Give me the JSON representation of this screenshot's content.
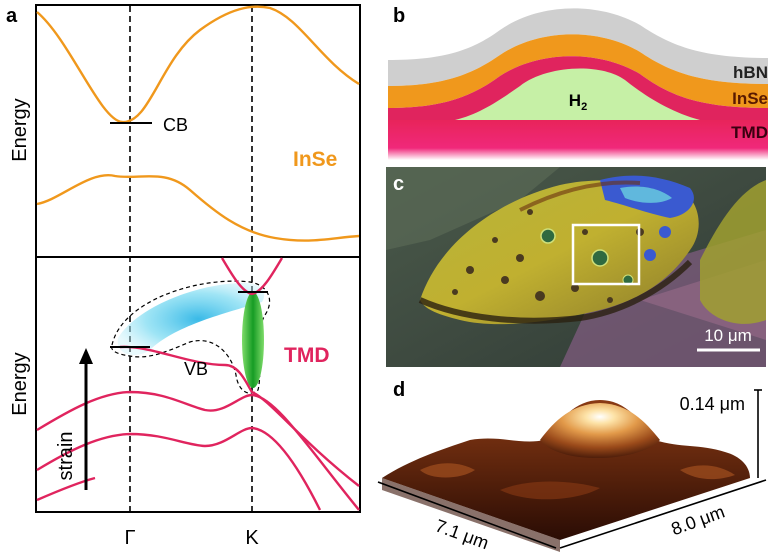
{
  "panels": {
    "a": {
      "letter": "a",
      "top": {
        "ylabel": "Energy",
        "material": "InSe",
        "band_label": "CB"
      },
      "bottom": {
        "ylabel": "Energy",
        "material": "TMD",
        "band_label": "VB",
        "arrow_label": "strain"
      },
      "x_ticks": [
        "Γ",
        "K"
      ]
    },
    "b": {
      "letter": "b",
      "layers": [
        "hBN",
        "InSe",
        "TMD"
      ],
      "gas_main": "H",
      "gas_sub": "2"
    },
    "c": {
      "letter": "c",
      "scale_bar": "10 μm"
    },
    "d": {
      "letter": "d",
      "height": "0.14 μm",
      "x_extent": "7.1 μm",
      "y_extent": "8.0 μm"
    }
  },
  "colors": {
    "inse": "#f0981c",
    "tmd": "#e0245e",
    "hbn": "#cfcfcf",
    "h2": "#c6f0a6",
    "cyan": "#5ad0ec",
    "green": "#22b33a"
  }
}
